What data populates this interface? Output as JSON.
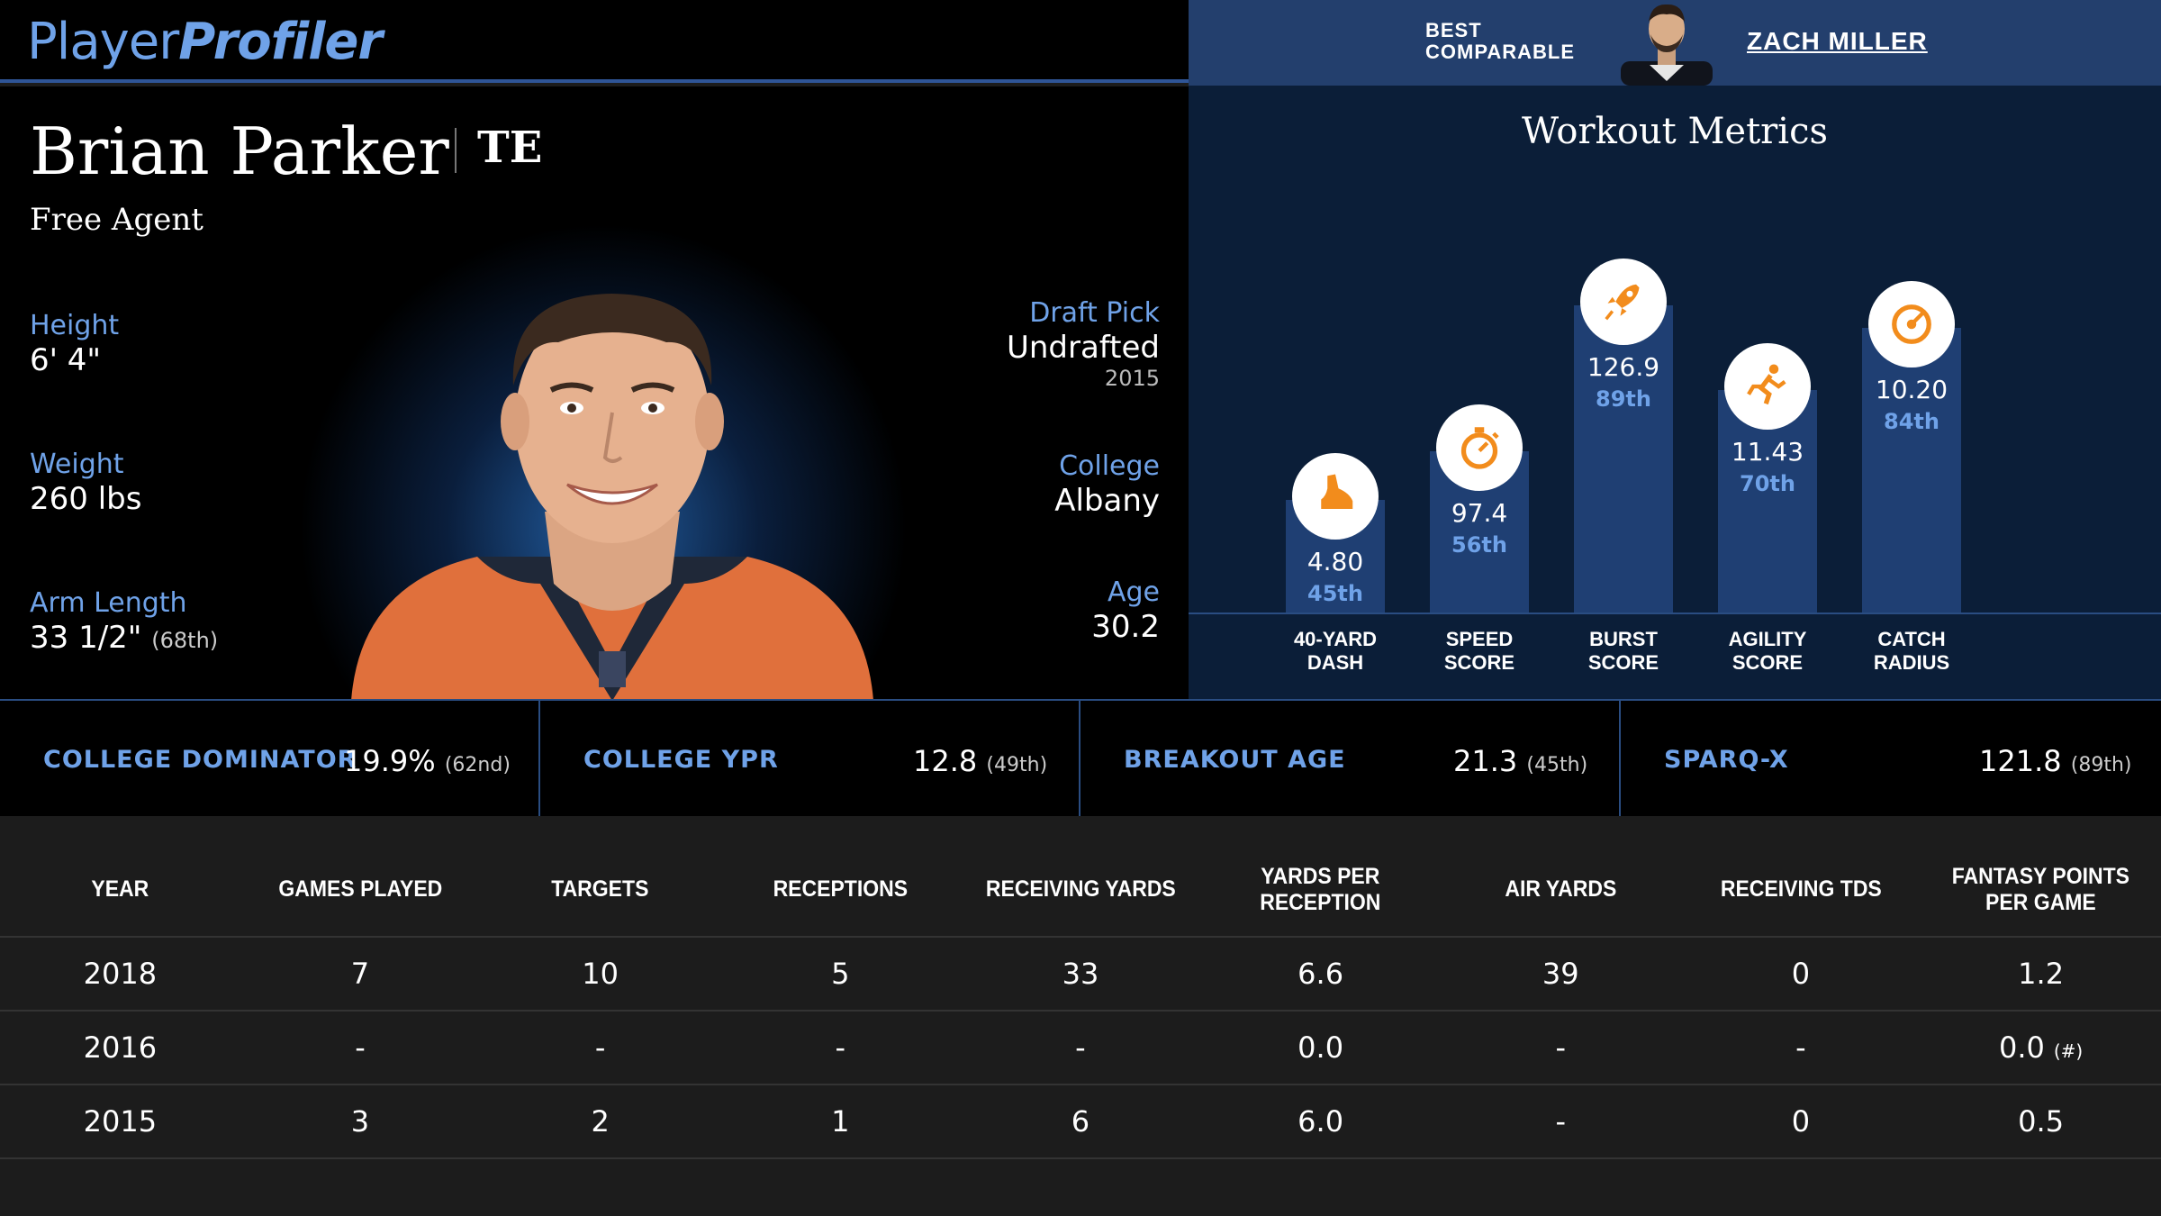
{
  "header": {
    "logo_part1": "Player",
    "logo_part2": "Profiler",
    "best_comparable_line1": "BEST",
    "best_comparable_line2": "COMPARABLE",
    "comparable_name": "ZACH MILLER"
  },
  "player": {
    "name": "Brian Parker",
    "position": "TE",
    "team": "Free Agent",
    "height_label": "Height",
    "height": "6' 4\"",
    "weight_label": "Weight",
    "weight": "260 lbs",
    "arm_label": "Arm Length",
    "arm": "33 1/2\"",
    "arm_pct": "(68th)",
    "draft_label": "Draft Pick",
    "draft": "Undrafted",
    "draft_year": "2015",
    "college_label": "College",
    "college": "Albany",
    "age_label": "Age",
    "age": "30.2"
  },
  "workout": {
    "title": "Workout Metrics",
    "metrics": [
      {
        "label1": "40-YARD",
        "label2": "DASH",
        "value": "4.80",
        "pct": "45th",
        "percentile": 45,
        "icon": "shoe-icon"
      },
      {
        "label1": "SPEED",
        "label2": "SCORE",
        "value": "97.4",
        "pct": "56th",
        "percentile": 56,
        "icon": "stopwatch-icon"
      },
      {
        "label1": "BURST",
        "label2": "SCORE",
        "value": "126.9",
        "pct": "89th",
        "percentile": 89,
        "icon": "rocket-icon"
      },
      {
        "label1": "AGILITY",
        "label2": "SCORE",
        "value": "11.43",
        "pct": "70th",
        "percentile": 70,
        "icon": "runner-icon"
      },
      {
        "label1": "CATCH",
        "label2": "RADIUS",
        "value": "10.20",
        "pct": "84th",
        "percentile": 84,
        "icon": "target-icon"
      }
    ]
  },
  "metrics_row": [
    {
      "label": "COLLEGE DOMINATOR",
      "value": "19.9%",
      "pct": "(62nd)"
    },
    {
      "label": "COLLEGE YPR",
      "value": "12.8",
      "pct": "(49th)"
    },
    {
      "label": "BREAKOUT AGE",
      "value": "21.3",
      "pct": "(45th)"
    },
    {
      "label": "SPARQ-X",
      "value": "121.8",
      "pct": "(89th)"
    }
  ],
  "stats": {
    "headers": [
      "YEAR",
      "GAMES PLAYED",
      "TARGETS",
      "RECEPTIONS",
      "RECEIVING YARDS",
      "YARDS PER RECEPTION",
      "AIR YARDS",
      "RECEIVING TDS",
      "FANTASY POINTS PER GAME"
    ],
    "rows": [
      [
        "2018",
        "7",
        "10",
        "5",
        "33",
        "6.6",
        "39",
        "0",
        "1.2"
      ],
      [
        "2016",
        "-",
        "-",
        "-",
        "-",
        "0.0",
        "-",
        "-",
        "0.0"
      ],
      [
        "2015",
        "3",
        "2",
        "1",
        "6",
        "6.0",
        "-",
        "0",
        "0.5"
      ]
    ],
    "note": "(#)"
  },
  "colors": {
    "accent": "#6fa2e8",
    "header_blue": "#233f6d",
    "bar": "#1f3f73",
    "icon_orange": "#f28c1c"
  }
}
